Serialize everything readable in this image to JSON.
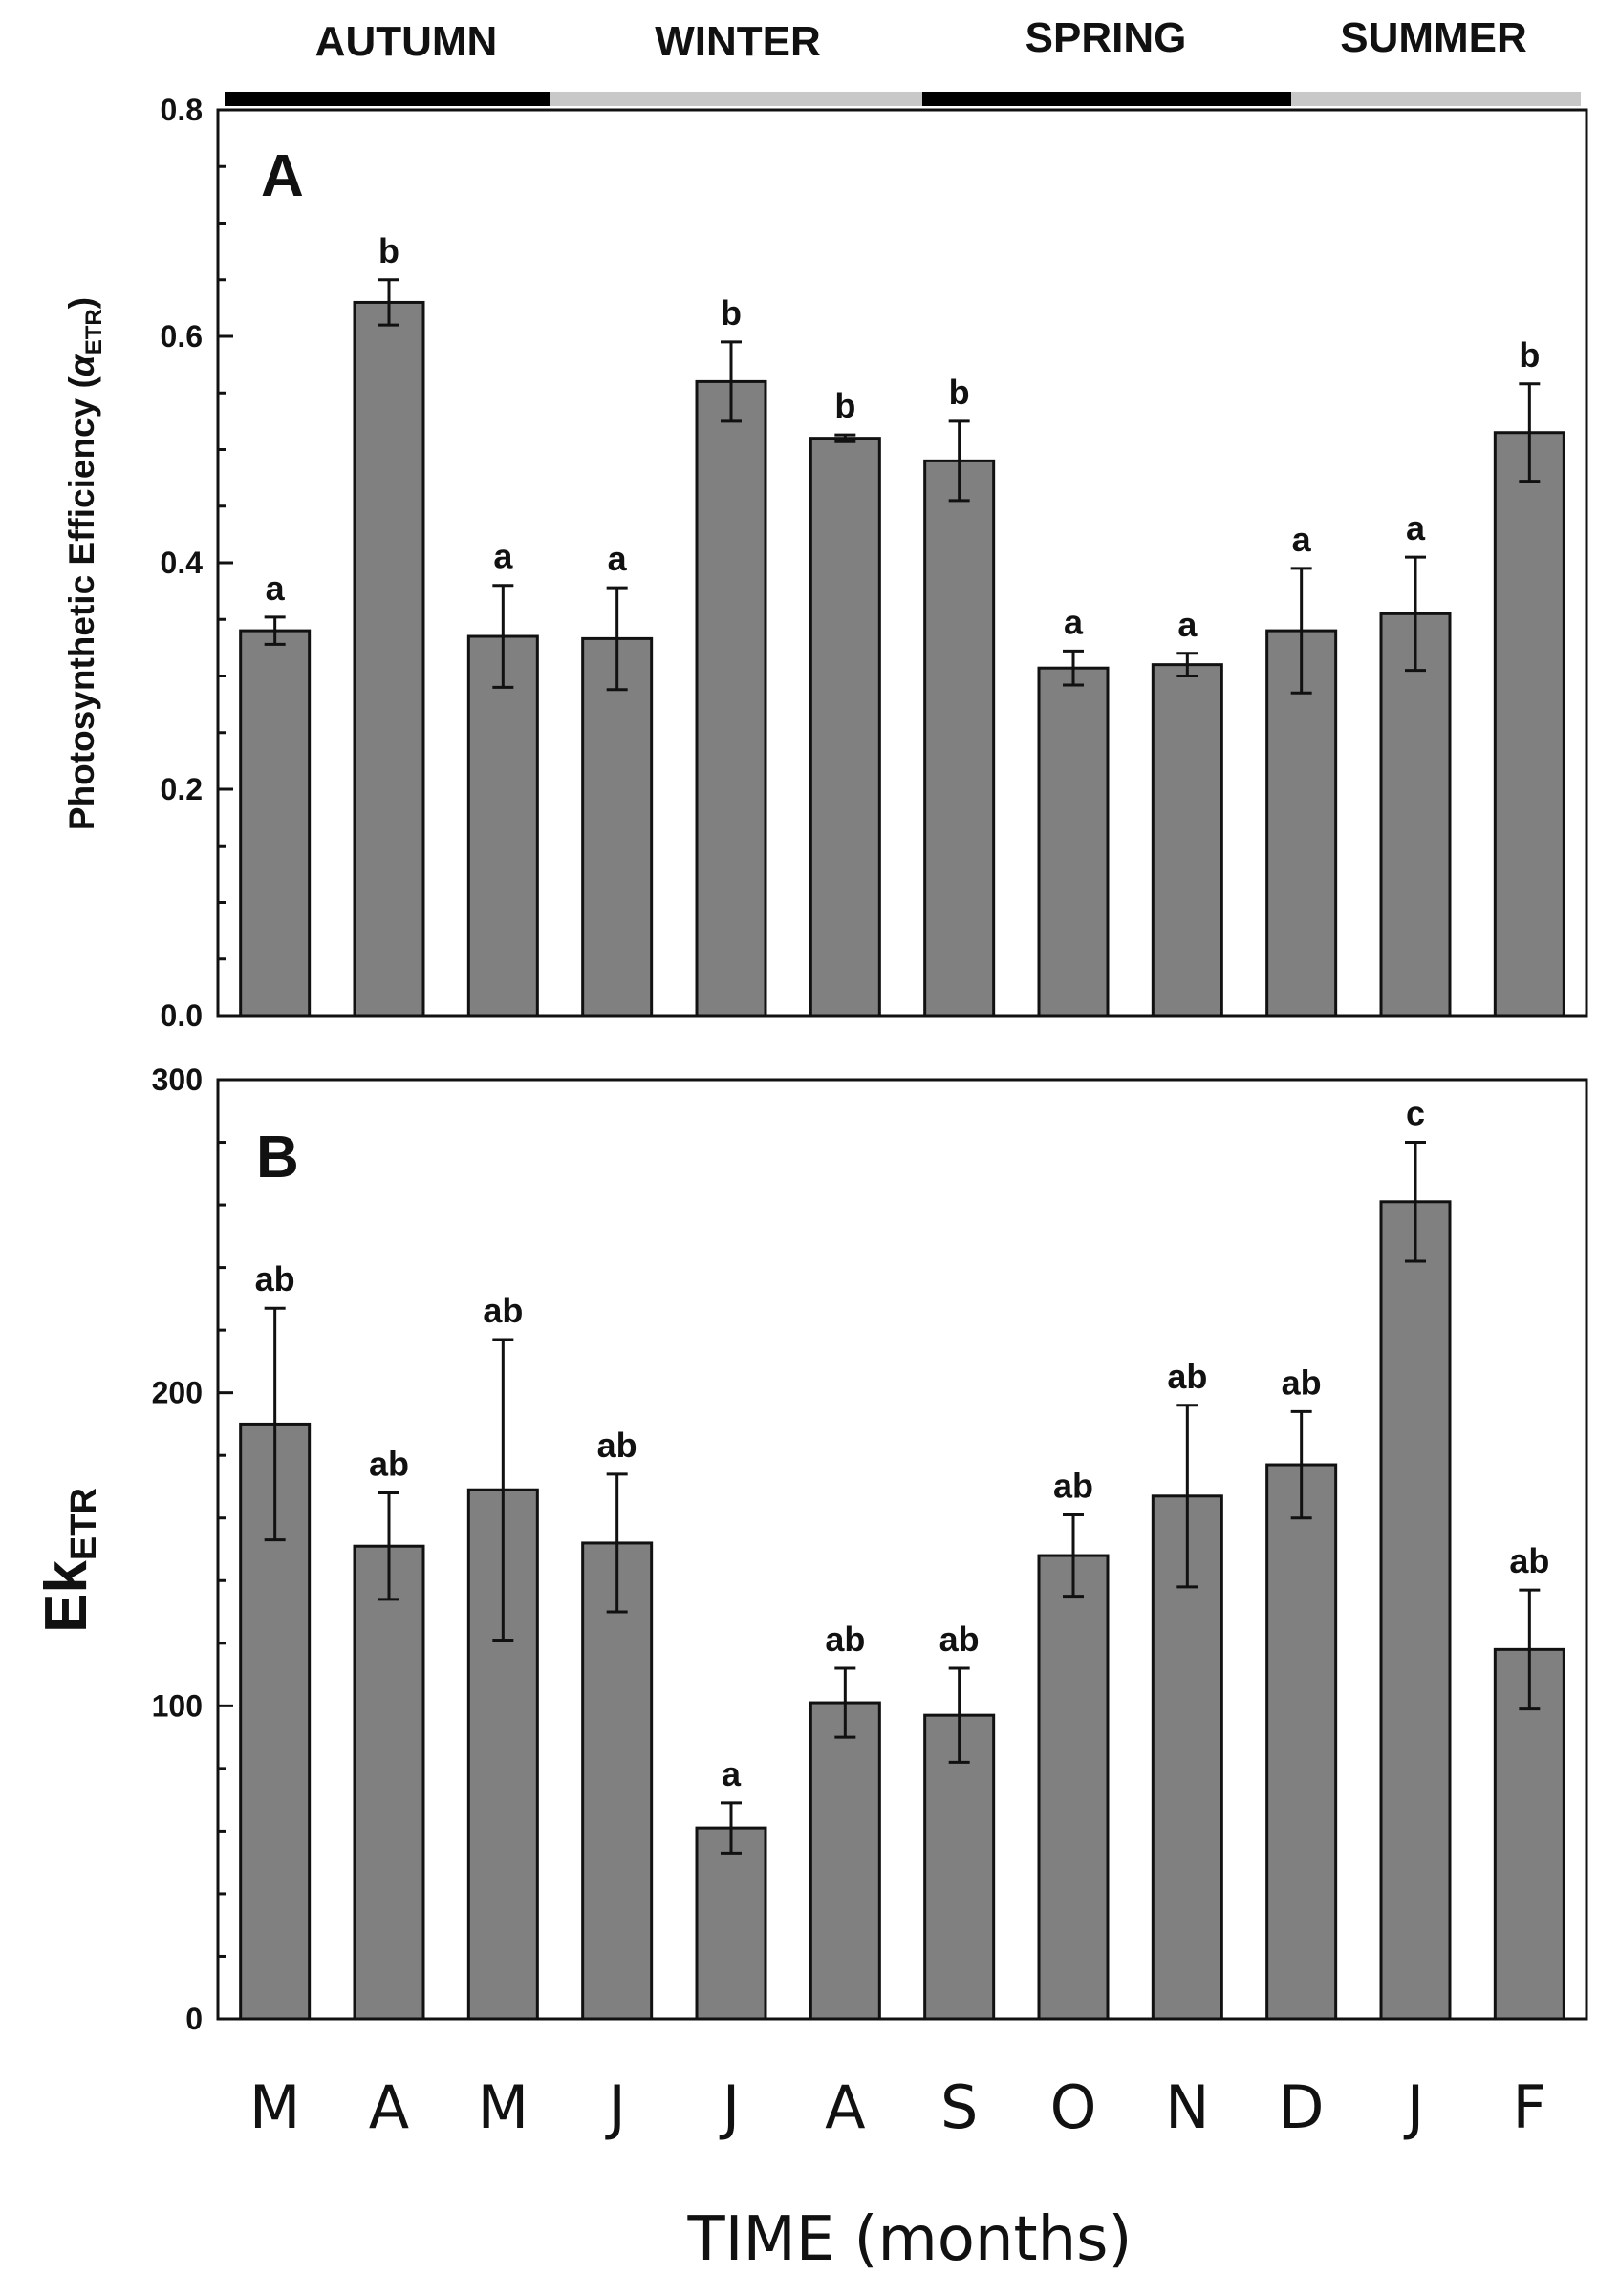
{
  "seasons": [
    {
      "label": "AUTUMN",
      "color": "#000000"
    },
    {
      "label": "WINTER",
      "color": "#c8c8c8"
    },
    {
      "label": "SPRING",
      "color": "#000000"
    },
    {
      "label": "SUMMER",
      "color": "#c8c8c8"
    }
  ],
  "colors": {
    "bar": "#808080",
    "axis": "#111111"
  },
  "chart_data": [
    {
      "type": "bar",
      "panel": "A",
      "ylabel": "Photosynthetic Efficiency (",
      "ylabel_symbol": "α",
      "ylabel_subscript": "ETR",
      "ylabel_close": ")",
      "ylim": [
        0,
        0.8
      ],
      "yticks": [
        0.0,
        0.2,
        0.4,
        0.6,
        0.8
      ],
      "ytick_labels": [
        "0.0",
        "0.2",
        "0.4",
        "0.6",
        "0.8"
      ],
      "categories": [
        "M",
        "A",
        "M",
        "J",
        "J",
        "A",
        "S",
        "O",
        "N",
        "D",
        "J",
        "F"
      ],
      "values": [
        0.34,
        0.63,
        0.335,
        0.333,
        0.56,
        0.51,
        0.49,
        0.307,
        0.31,
        0.34,
        0.355,
        0.515
      ],
      "errors": [
        0.012,
        0.02,
        0.045,
        0.045,
        0.035,
        0.003,
        0.035,
        0.015,
        0.01,
        0.055,
        0.05,
        0.043
      ],
      "significance": [
        "a",
        "b",
        "a",
        "a",
        "b",
        "b",
        "b",
        "a",
        "a",
        "a",
        "a",
        "b"
      ]
    },
    {
      "type": "bar",
      "panel": "B",
      "ylabel": "Ek",
      "ylabel_subscript": "ETR",
      "ylim": [
        0,
        300
      ],
      "yticks": [
        0,
        100,
        200,
        300
      ],
      "ytick_labels": [
        "0",
        "100",
        "200",
        "300"
      ],
      "categories": [
        "M",
        "A",
        "M",
        "J",
        "J",
        "A",
        "S",
        "O",
        "N",
        "D",
        "J",
        "F"
      ],
      "values": [
        190,
        151,
        169,
        152,
        61,
        101,
        97,
        148,
        167,
        177,
        261,
        118
      ],
      "errors": [
        37,
        17,
        48,
        22,
        8,
        11,
        15,
        13,
        29,
        17,
        19,
        19
      ],
      "significance": [
        "ab",
        "ab",
        "ab",
        "ab",
        "a",
        "ab",
        "ab",
        "ab",
        "ab",
        "ab",
        "c",
        "ab"
      ],
      "xlabel": "TIME (months)"
    }
  ]
}
